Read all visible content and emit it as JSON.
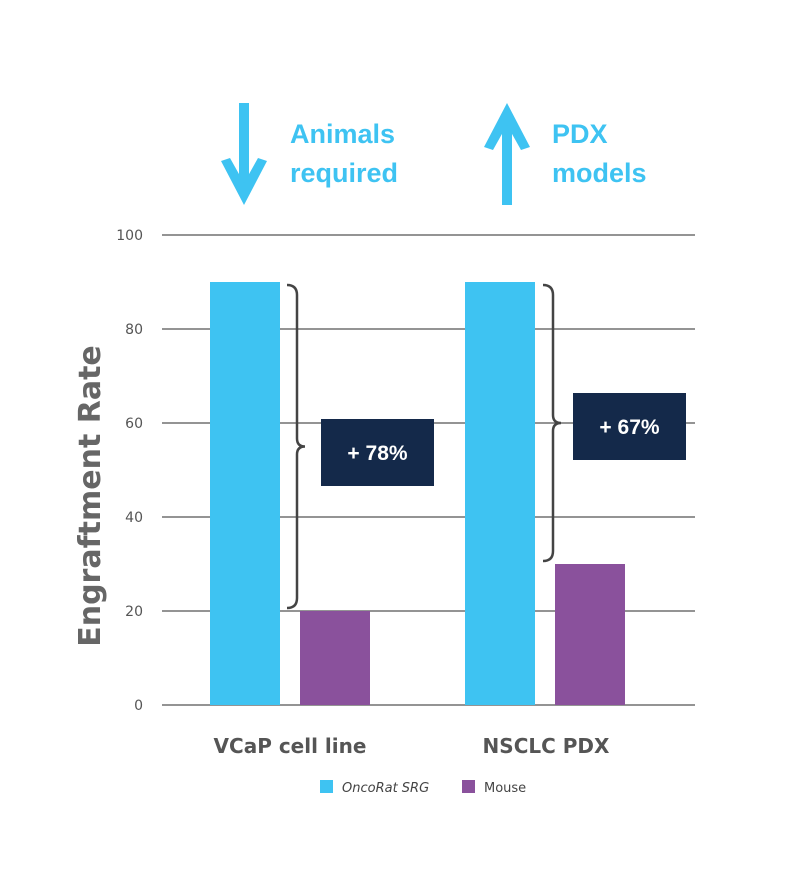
{
  "headlines": [
    {
      "direction": "down",
      "lines": [
        "Animals",
        "required"
      ]
    },
    {
      "direction": "up",
      "lines": [
        "PDX",
        "models"
      ]
    }
  ],
  "chart_data": {
    "type": "bar",
    "categories": [
      "VCaP cell line",
      "NSCLC PDX"
    ],
    "series": [
      {
        "name": "OncoRat SRG",
        "color": "#3ec3f2",
        "values": [
          90,
          90
        ]
      },
      {
        "name": "Mouse",
        "color": "#8a519c",
        "values": [
          20,
          30
        ]
      }
    ],
    "ylabel": "Engraftment Rate",
    "ylim": [
      0,
      100
    ],
    "yticks": [
      0,
      20,
      40,
      60,
      80,
      100
    ],
    "grid": true,
    "annotations": [
      "+ 78%",
      "+ 67%"
    ],
    "annotation_color": "#14294a",
    "legend_position": "bottom"
  }
}
